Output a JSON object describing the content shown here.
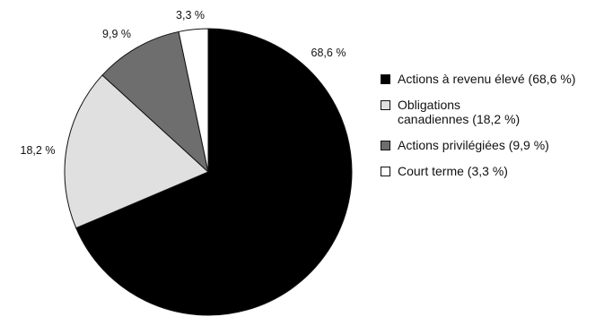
{
  "chart_data": {
    "type": "pie",
    "slices": [
      {
        "label": "68,6 %",
        "value": 68.6,
        "color": "#000000"
      },
      {
        "label": "18,2 %",
        "value": 18.2,
        "color": "#e0e0e0"
      },
      {
        "label": "9,9 %",
        "value": 9.9,
        "color": "#6e6e6e"
      },
      {
        "label": "3,3 %",
        "value": 3.3,
        "color": "#ffffff"
      }
    ],
    "start": "top",
    "direction": "clockwise",
    "legend_position": "right"
  },
  "legend": {
    "items": [
      {
        "text": "Actions à revenu élevé (68,6 %)",
        "color": "#000000"
      },
      {
        "text": "Obligations canadiennes (18,2 %)",
        "color": "#e0e0e0"
      },
      {
        "text": "Actions privilégiées (9,9 %)",
        "color": "#6e6e6e"
      },
      {
        "text": "Court terme (3,3 %)",
        "color": "#ffffff"
      }
    ]
  }
}
